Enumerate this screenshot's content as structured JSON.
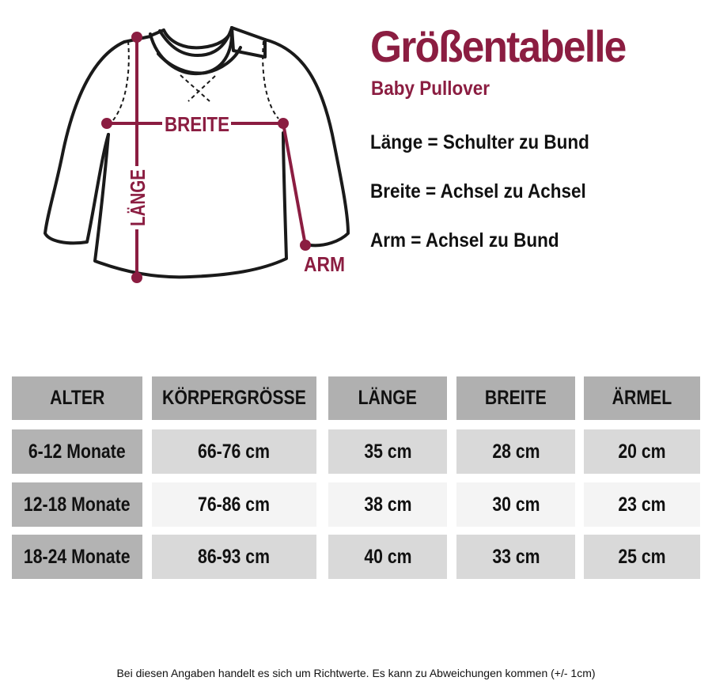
{
  "header": {
    "title": "Größentabelle",
    "subtitle": "Baby Pullover"
  },
  "diagram": {
    "label_breite": "BREITE",
    "label_laenge": "LÄNGE",
    "label_arm": "ARM"
  },
  "definitions": [
    "Länge = Schulter zu Bund",
    "Breite = Achsel zu Achsel",
    "Arm = Achsel zu Bund"
  ],
  "table": {
    "headers": [
      "ALTER",
      "KÖRPERGRÖSSE",
      "LÄNGE",
      "BREITE",
      "ÄRMEL"
    ],
    "rows": [
      [
        "6-12 Monate",
        "66-76 cm",
        "35 cm",
        "28 cm",
        "20 cm"
      ],
      [
        "12-18 Monate",
        "76-86 cm",
        "38 cm",
        "30 cm",
        "23 cm"
      ],
      [
        "18-24 Monate",
        "86-93 cm",
        "40 cm",
        "33 cm",
        "25 cm"
      ]
    ]
  },
  "footnote": "Bei diesen Angaben handelt es sich um Richtwerte. Es kann zu Abweichungen kommen (+/- 1cm)",
  "colors": {
    "accent": "#8b1d41",
    "header_bg": "#b0b0b0",
    "row_dark": "#d9d9d9",
    "row_light": "#f4f4f4"
  }
}
